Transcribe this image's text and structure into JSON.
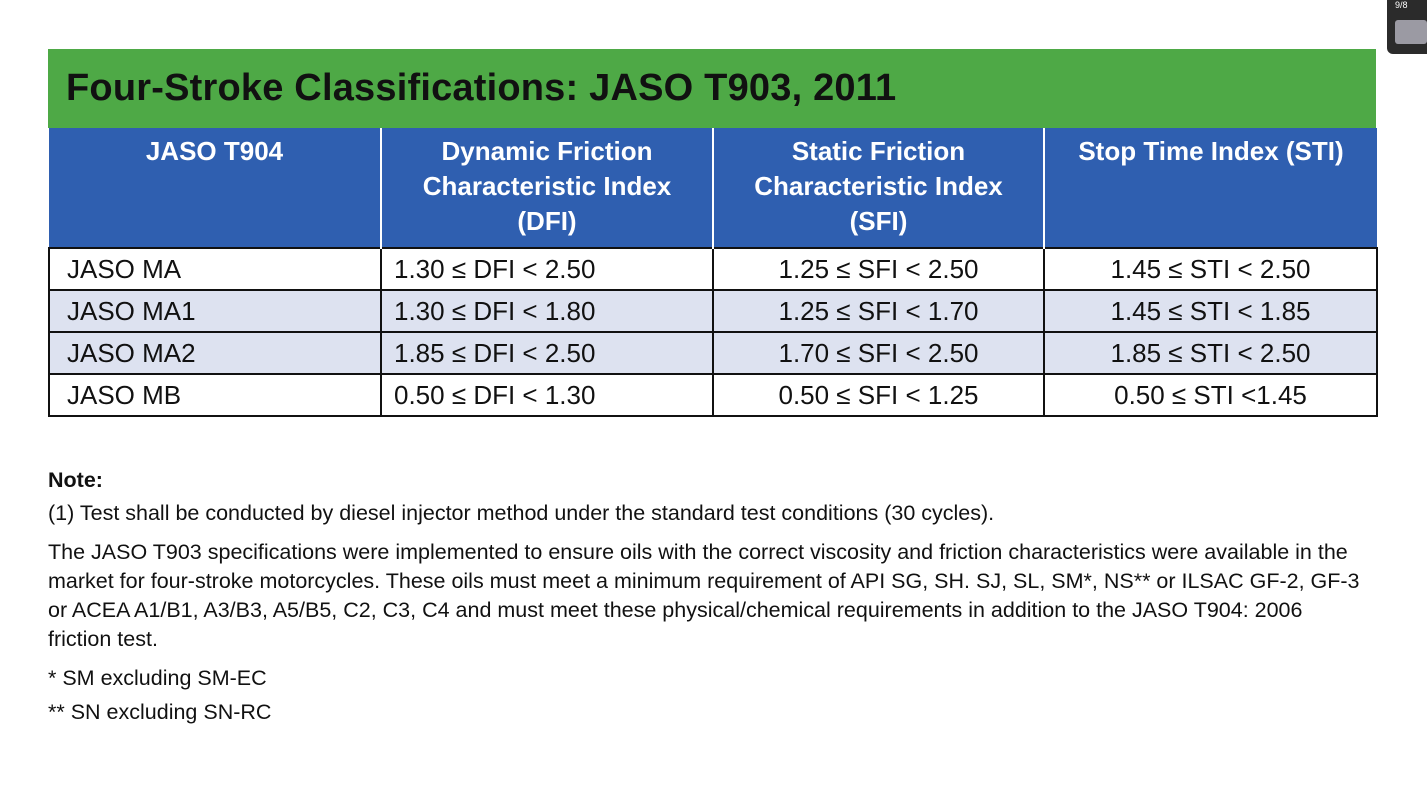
{
  "table": {
    "title": "Four-Stroke Classifications: JASO T903, 2011",
    "headers": [
      "JASO T904",
      "Dynamic Friction Characteristic Index (DFI)",
      "Static Friction Characteristic Index (SFI)",
      "Stop Time Index (STI)"
    ],
    "rows": [
      [
        "JASO MA",
        "1.30 ≤ DFI < 2.50",
        "1.25 ≤ SFI < 2.50",
        "1.45 ≤ STI < 2.50"
      ],
      [
        "JASO MA1",
        "1.30 ≤ DFI < 1.80",
        "1.25 ≤ SFI < 1.70",
        "1.45 ≤ STI < 1.85"
      ],
      [
        "JASO MA2",
        "1.85 ≤ DFI < 2.50",
        "1.70 ≤ SFI < 2.50",
        "1.85 ≤ STI < 2.50"
      ],
      [
        "JASO MB",
        "0.50 ≤ DFI < 1.30",
        "0.50 ≤ SFI < 1.25",
        "0.50 ≤ STI <1.45"
      ]
    ],
    "colors": {
      "title_bg": "#4ea946",
      "header_bg": "#2f5fb0",
      "alt_row_bg": "#dde2f0"
    }
  },
  "notes": {
    "heading": "Note:",
    "note1": "(1) Test shall be conducted by diesel injector method under the standard test conditions (30 cycles).",
    "paragraph": "The JASO T903 specifications were implemented to ensure oils with the correct viscosity and friction characteristics were available in the market for four-stroke motorcycles. These oils must meet a minimum requirement of API SG, SH. SJ, SL, SM*, NS** or ILSAC GF-2, GF-3 or ACEA A1/B1, A3/B3, A5/B5, C2, C3, C4 and must meet these physical/chemical requirements in addition to the JASO T904: 2006 friction test.",
    "footnote1": "* SM excluding SM-EC",
    "footnote2": "** SN excluding SN-RC"
  },
  "corner_widget": {
    "label": "9/8"
  }
}
